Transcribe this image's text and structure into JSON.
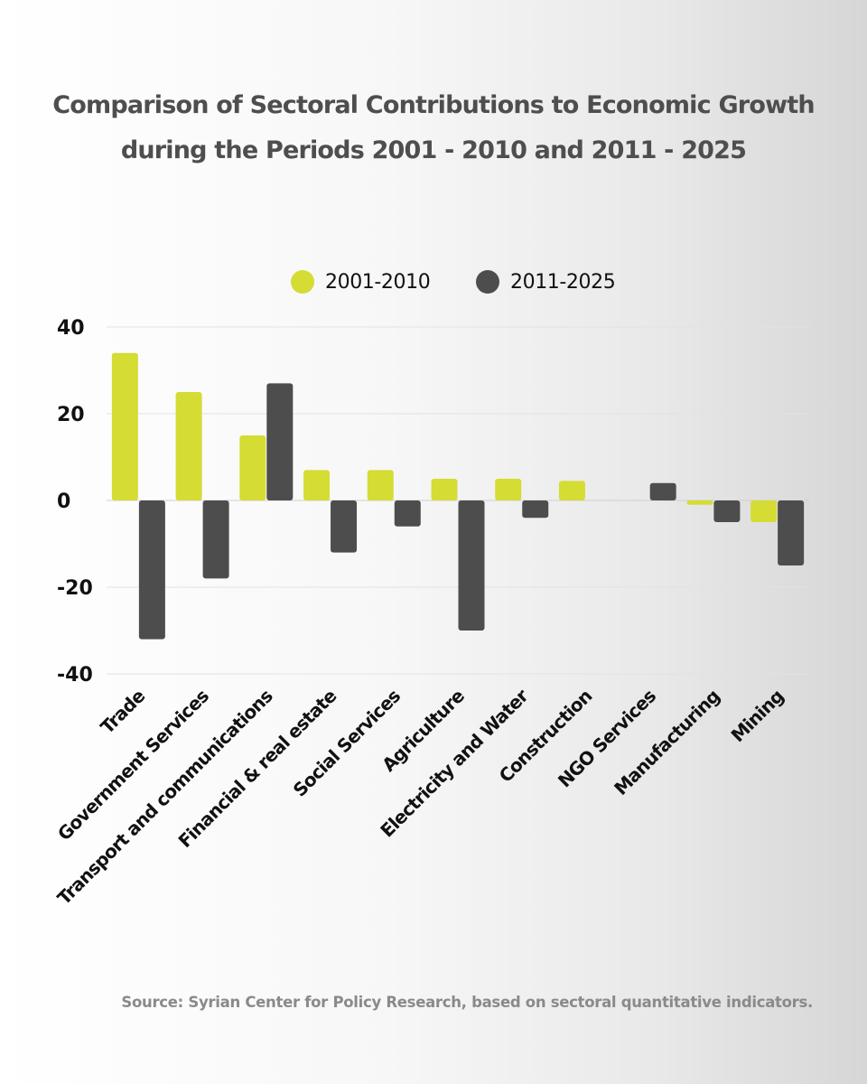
{
  "title_lines": [
    "Comparison of Sectoral Contributions to Economic Growth",
    "during the Periods 2001 - 2010 and 2011 - 2025"
  ],
  "source": "Source: Syrian Center for Policy Research, based on sectoral quantitative indicators.",
  "colors": {
    "series_2001_2010": "#d5dc33",
    "series_2011_2025": "#4d4d4d",
    "grid": "#dcdcdc",
    "title": "#4e4e4e",
    "source": "#8a8a8a"
  },
  "chart_data": {
    "type": "bar",
    "categories": [
      "Trade",
      "Government Services",
      "Transport and communications",
      "Financial & real estate",
      "Social Services",
      "Agriculture",
      "Electricity and Water",
      "Construction",
      "NGO Services",
      "Manufacturing",
      "Mining"
    ],
    "series": [
      {
        "name": "2001-2010",
        "color": "#d5dc33",
        "values": [
          34,
          25,
          15,
          7,
          7,
          5,
          5,
          4.5,
          0,
          -1,
          -5
        ]
      },
      {
        "name": "2011-2025",
        "color": "#4d4d4d",
        "values": [
          -32,
          -18,
          27,
          -12,
          -6,
          -30,
          -4,
          0,
          4,
          -5,
          -15
        ]
      }
    ],
    "yticks": [
      40,
      20,
      0,
      -20,
      -40
    ],
    "ylim": [
      -40,
      40
    ],
    "grid": true,
    "legend_position": "top-center",
    "xlabel": "",
    "ylabel": ""
  }
}
